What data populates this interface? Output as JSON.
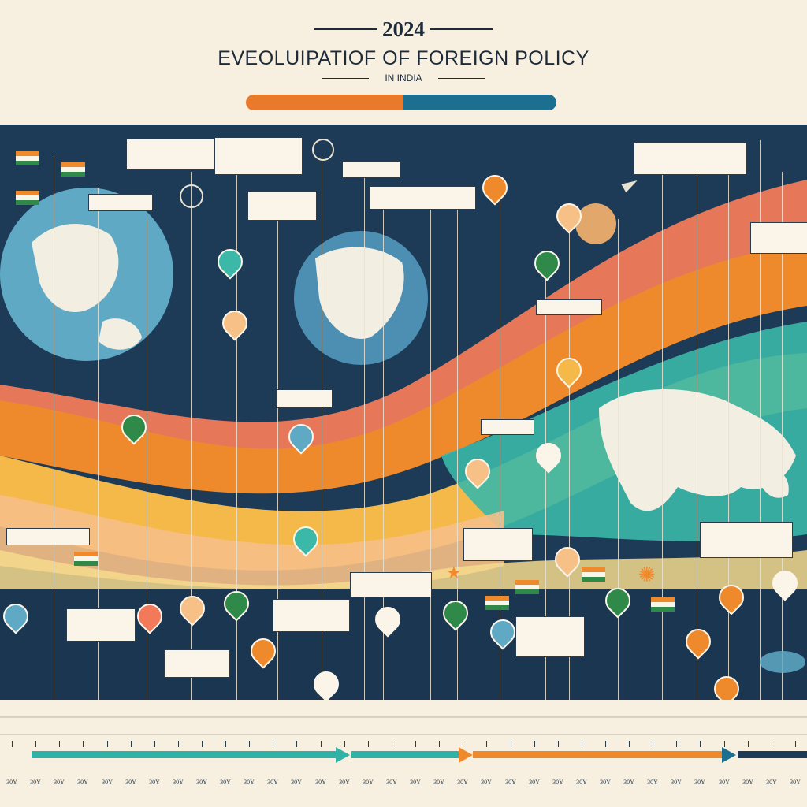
{
  "header": {
    "year": "2024",
    "title": "EVEOLUIPATIOF OF FOREIGN POLICY",
    "subtitle": "IN INDIA"
  },
  "colors": {
    "navy": "#1d3b57",
    "saffron": "#e97a2b",
    "teal": "#1d6f8f",
    "cream": "#f7f0e1",
    "green": "#2f8a4a"
  },
  "timeline": {
    "tick_labels": [
      "30Y",
      "30Y",
      "30Y",
      "30Y",
      "30Y",
      "30Y",
      "30Y",
      "30Y",
      "30Y",
      "30Y",
      "30Y",
      "30Y",
      "30Y",
      "30Y",
      "30Y",
      "30Y",
      "30Y",
      "30Y",
      "30Y",
      "30Y",
      "30Y",
      "30Y",
      "30Y",
      "30Y",
      "30Y",
      "30Y",
      "30Y",
      "30Y",
      "30Y",
      "30Y",
      "30Y",
      "30Y",
      "30Y",
      "30Y"
    ]
  },
  "icons": [
    "globe-icon",
    "flag-icon",
    "map-pin-icon",
    "ship-icon",
    "airplane-icon",
    "compass-icon",
    "star-icon"
  ]
}
